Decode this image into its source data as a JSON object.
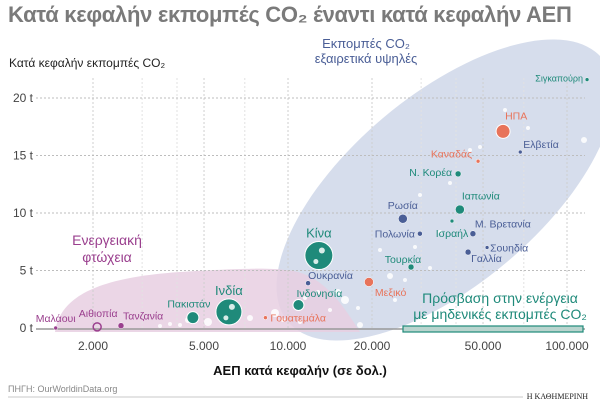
{
  "title": "Κατά κεφαλήν εκπομπές CO₂ έναντι κατά κεφαλήν ΑΕΠ",
  "source": "ΠΗΓΗ: OurWorldinData.org",
  "logo": "Η ΚΑΘΗΜΕΡΙΝΗ",
  "colors": {
    "teal": "#1f8a7a",
    "red": "#e8735a",
    "blue": "#4a5e96",
    "purple": "#9a3f8e",
    "grey_text": "#555555",
    "high_region": "#c8d1e5",
    "poverty_region": "#e8cfe2"
  },
  "chart_data": {
    "type": "scatter",
    "title": "Κατά κεφαλήν εκπομπές CO₂ έναντι κατά κεφαλήν ΑΕΠ",
    "xlabel": "ΑΕΠ κατά κεφαλήν (σε δολ.)",
    "ylabel": "Κατά κεφαλήν εκπομπές CO₂",
    "x_scale": "log",
    "xlim": [
      1300,
      125000
    ],
    "ylim": [
      0,
      22
    ],
    "x_ticks": [
      {
        "value": 2000,
        "label": "2.000"
      },
      {
        "value": 5000,
        "label": "5.000"
      },
      {
        "value": 10000,
        "label": "10.000"
      },
      {
        "value": 20000,
        "label": "20.000"
      },
      {
        "value": 50000,
        "label": "50.000"
      },
      {
        "value": 100000,
        "label": "100.000"
      }
    ],
    "y_ticks": [
      {
        "value": 0,
        "label": "0 t"
      },
      {
        "value": 5,
        "label": "5 t"
      },
      {
        "value": 10,
        "label": "10 t"
      },
      {
        "value": 15,
        "label": "15 t"
      },
      {
        "value": 20,
        "label": "20 t"
      }
    ],
    "grid": true,
    "points": [
      {
        "name": "Σιγκαπούρη",
        "x": 118000,
        "y": 21.6,
        "color": "teal"
      },
      {
        "name": "ΗΠΑ",
        "x": 59000,
        "y": 17.1,
        "color": "red"
      },
      {
        "name": "Ελβετία",
        "x": 68000,
        "y": 15.3,
        "color": "blue"
      },
      {
        "name": "Καναδάς",
        "x": 48000,
        "y": 14.5,
        "color": "red"
      },
      {
        "name": "Ν. Κορέα",
        "x": 40700,
        "y": 13.4,
        "color": "teal"
      },
      {
        "name": "Ιαπωνία",
        "x": 41300,
        "y": 10.3,
        "color": "teal"
      },
      {
        "name": "Ρωσία",
        "x": 25800,
        "y": 9.5,
        "color": "blue"
      },
      {
        "name": "Ισραήλ",
        "x": 38700,
        "y": 9.3,
        "color": "teal"
      },
      {
        "name": "Πολωνία",
        "x": 29700,
        "y": 8.2,
        "color": "blue"
      },
      {
        "name": "Μ. Βρετανία",
        "x": 46000,
        "y": 8.2,
        "color": "blue"
      },
      {
        "name": "Σουηδία",
        "x": 51700,
        "y": 7.0,
        "color": "blue"
      },
      {
        "name": "Γαλλία",
        "x": 44200,
        "y": 6.6,
        "color": "blue"
      },
      {
        "name": "Τουρκία",
        "x": 27600,
        "y": 5.3,
        "color": "teal"
      },
      {
        "name": "Κίνα",
        "x": 12900,
        "y": 6.3,
        "color": "teal"
      },
      {
        "name": "Ουκρανία",
        "x": 11800,
        "y": 3.9,
        "color": "blue"
      },
      {
        "name": "Μεξικό",
        "x": 19500,
        "y": 4.0,
        "color": "red"
      },
      {
        "name": "Ινδονησία",
        "x": 10900,
        "y": 2.0,
        "color": "teal"
      },
      {
        "name": "Ινδία",
        "x": 6140,
        "y": 1.4,
        "color": "teal"
      },
      {
        "name": "Γουατεμάλα",
        "x": 8300,
        "y": 0.9,
        "color": "red"
      },
      {
        "name": "Πακιστάν",
        "x": 4560,
        "y": 0.9,
        "color": "teal"
      },
      {
        "name": "Τανζανία",
        "x": 2520,
        "y": 0.2,
        "color": "purple"
      },
      {
        "name": "Αιθιοπία",
        "x": 2070,
        "y": 0.1,
        "color": "purple"
      },
      {
        "name": "Μαλάουι",
        "x": 1470,
        "y": 0.0,
        "color": "purple"
      }
    ],
    "annotations": [
      {
        "text": [
          "Εκπομπές CO₂",
          "εξαιρετικά υψηλές"
        ],
        "color": "blue"
      },
      {
        "text": [
          "Ενεργειακή",
          "φτώχεια"
        ],
        "color": "purple"
      },
      {
        "text": [
          "Πρόσβαση στην ενέργεια",
          "με μηδενικές εκπομπές CO₂"
        ],
        "color": "teal"
      }
    ]
  }
}
